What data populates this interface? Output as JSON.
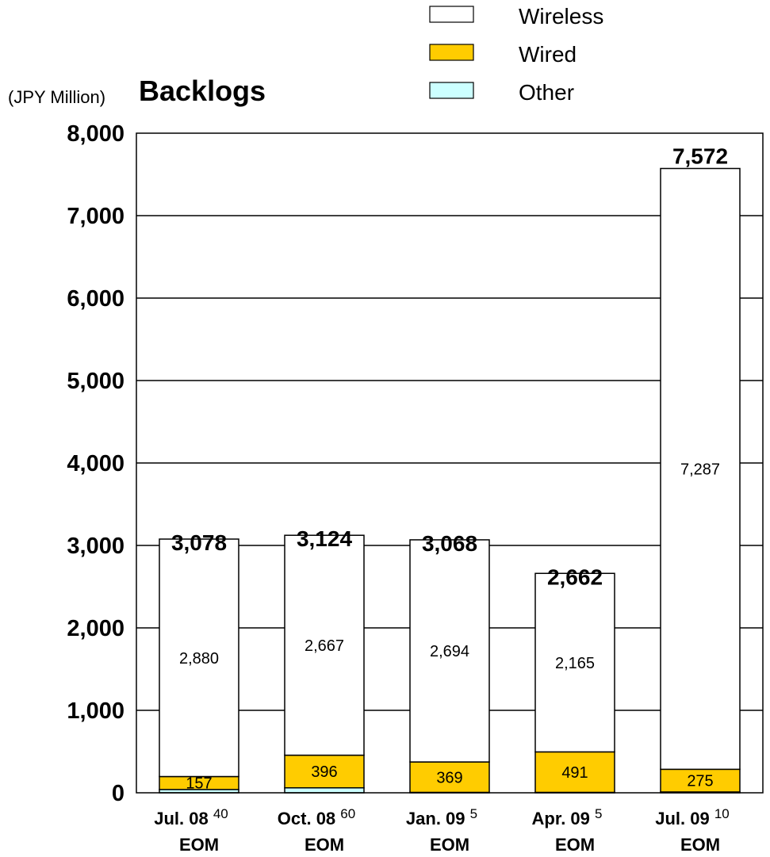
{
  "chart_data": {
    "type": "bar",
    "stacked": true,
    "title": "Backlogs",
    "unit_label": "(JPY Million)",
    "ylim": [
      0,
      8000
    ],
    "yticks": [
      "0",
      "1,000",
      "2,000",
      "3,000",
      "4,000",
      "5,000",
      "6,000",
      "7,000",
      "8,000"
    ],
    "grid": true,
    "legend_position": "top-right",
    "categories": [
      {
        "line1": "Jul. 08",
        "sup": "40",
        "line2": "EOM"
      },
      {
        "line1": "Oct. 08",
        "sup": "60",
        "line2": "EOM"
      },
      {
        "line1": "Jan. 09",
        "sup": "5",
        "line2": "EOM"
      },
      {
        "line1": "Apr. 09",
        "sup": "5",
        "line2": "EOM"
      },
      {
        "line1": "Jul. 09",
        "sup": "10",
        "line2": "EOM"
      }
    ],
    "series": [
      {
        "name": "Other",
        "color": "#ccffff",
        "values": [
          40,
          60,
          5,
          5,
          10
        ],
        "labels": [
          "",
          "",
          "",
          "",
          ""
        ]
      },
      {
        "name": "Wired",
        "color": "#ffcc00",
        "values": [
          157,
          396,
          369,
          491,
          275
        ],
        "labels": [
          "157",
          "396",
          "369",
          "491",
          "275"
        ]
      },
      {
        "name": "Wireless",
        "color": "#ffffff",
        "values": [
          2880,
          2667,
          2694,
          2165,
          7287
        ],
        "labels": [
          "2,880",
          "2,667",
          "2,694",
          "2,165",
          "7,287"
        ]
      }
    ],
    "totals": [
      "3,078",
      "3,124",
      "3,068",
      "2,662",
      "7,572"
    ],
    "legend": [
      {
        "name": "Wireless",
        "color": "#ffffff"
      },
      {
        "name": "Wired",
        "color": "#ffcc00"
      },
      {
        "name": "Other",
        "color": "#ccffff"
      }
    ]
  }
}
